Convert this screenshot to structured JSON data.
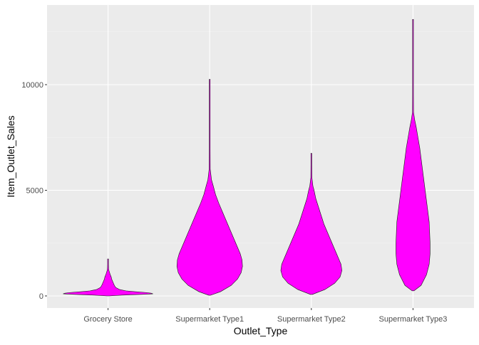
{
  "chart_data": {
    "type": "violin",
    "xlabel": "Outlet_Type",
    "ylabel": "Item_Outlet_Sales",
    "categories": [
      "Grocery Store",
      "Supermarket Type1",
      "Supermarket Type2",
      "Supermarket Type3"
    ],
    "ylim": [
      -500,
      13500
    ],
    "yticks": [
      0,
      5000,
      10000
    ],
    "ytick_labels": [
      "0",
      "5000",
      "10000"
    ],
    "grid": true,
    "legend": "none",
    "colors": {
      "fill": "#ff00ff",
      "stroke": "#1a1a1a",
      "panel": "#ebebeb",
      "grid_major": "#ffffff",
      "grid_minor": "#f5f5f5"
    },
    "violins": [
      {
        "category": "Grocery Store",
        "profile": [
          [
            0,
            0.02
          ],
          [
            35,
            0.3
          ],
          [
            70,
            0.7
          ],
          [
            100,
            1.0
          ],
          [
            130,
            0.96
          ],
          [
            160,
            0.85
          ],
          [
            200,
            0.6
          ],
          [
            240,
            0.4
          ],
          [
            300,
            0.26
          ],
          [
            400,
            0.17
          ],
          [
            500,
            0.14
          ],
          [
            600,
            0.12
          ],
          [
            700,
            0.1
          ],
          [
            800,
            0.08
          ],
          [
            900,
            0.07
          ],
          [
            1000,
            0.05
          ],
          [
            1100,
            0.035
          ],
          [
            1200,
            0.02
          ],
          [
            1300,
            0.013
          ],
          [
            1500,
            0.008
          ],
          [
            1700,
            0.004
          ],
          [
            1750,
            0.0
          ]
        ]
      },
      {
        "category": "Supermarket Type1",
        "profile": [
          [
            33,
            0.02
          ],
          [
            200,
            0.24
          ],
          [
            500,
            0.48
          ],
          [
            800,
            0.62
          ],
          [
            1100,
            0.7
          ],
          [
            1400,
            0.73
          ],
          [
            1700,
            0.72
          ],
          [
            2000,
            0.68
          ],
          [
            2400,
            0.6
          ],
          [
            2800,
            0.52
          ],
          [
            3200,
            0.44
          ],
          [
            3600,
            0.36
          ],
          [
            4000,
            0.28
          ],
          [
            4400,
            0.2
          ],
          [
            4800,
            0.13
          ],
          [
            5200,
            0.08
          ],
          [
            5500,
            0.04
          ],
          [
            6000,
            0.012
          ],
          [
            7000,
            0.008
          ],
          [
            8000,
            0.006
          ],
          [
            9200,
            0.004
          ],
          [
            10250,
            0.0
          ]
        ]
      },
      {
        "category": "Supermarket Type2",
        "profile": [
          [
            70,
            0.02
          ],
          [
            300,
            0.3
          ],
          [
            600,
            0.52
          ],
          [
            900,
            0.64
          ],
          [
            1200,
            0.68
          ],
          [
            1500,
            0.66
          ],
          [
            1800,
            0.6
          ],
          [
            2200,
            0.52
          ],
          [
            2600,
            0.44
          ],
          [
            3000,
            0.36
          ],
          [
            3400,
            0.28
          ],
          [
            3800,
            0.22
          ],
          [
            4200,
            0.16
          ],
          [
            4600,
            0.1
          ],
          [
            5000,
            0.06
          ],
          [
            5200,
            0.035
          ],
          [
            5600,
            0.012
          ],
          [
            6200,
            0.006
          ],
          [
            6750,
            0.0
          ]
        ]
      },
      {
        "category": "Supermarket Type3",
        "profile": [
          [
            241,
            0.02
          ],
          [
            500,
            0.18
          ],
          [
            1000,
            0.3
          ],
          [
            1500,
            0.36
          ],
          [
            2000,
            0.38
          ],
          [
            2500,
            0.38
          ],
          [
            3000,
            0.37
          ],
          [
            3500,
            0.36
          ],
          [
            4000,
            0.33
          ],
          [
            4500,
            0.3
          ],
          [
            5000,
            0.27
          ],
          [
            5500,
            0.24
          ],
          [
            6000,
            0.21
          ],
          [
            6500,
            0.18
          ],
          [
            7000,
            0.15
          ],
          [
            7500,
            0.11
          ],
          [
            8000,
            0.07
          ],
          [
            8300,
            0.04
          ],
          [
            8700,
            0.012
          ],
          [
            9500,
            0.008
          ],
          [
            11000,
            0.006
          ],
          [
            13087,
            0.0
          ]
        ]
      }
    ]
  }
}
